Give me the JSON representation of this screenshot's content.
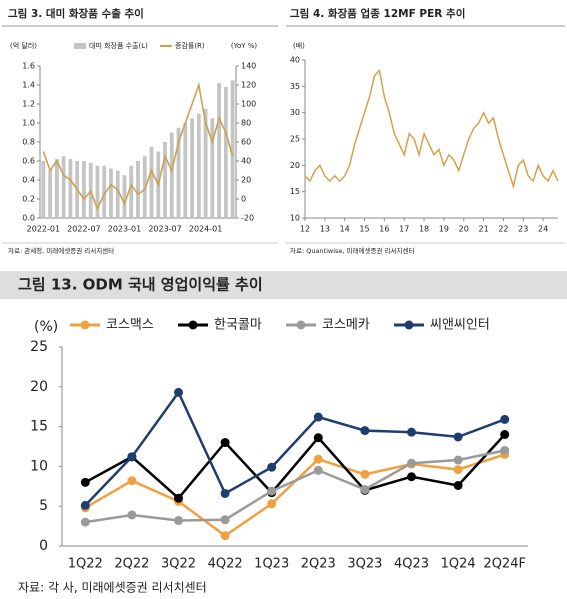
{
  "chart_data": [
    {
      "type": "combo",
      "title": "그림 3. 대미 화장품 수출 추이",
      "source": "자료: 관세청, 미래에셋증권 리서치센터",
      "y_label": "(억 달러)",
      "y2_label": "(YoY %)",
      "categories": [
        "2022-01",
        null,
        null,
        null,
        null,
        null,
        "2022-07",
        null,
        null,
        null,
        null,
        null,
        "2023-01",
        null,
        null,
        null,
        null,
        null,
        "2023-07",
        null,
        null,
        null,
        null,
        null,
        "2024-01",
        null,
        null,
        null,
        null
      ],
      "series": [
        {
          "name": "대미 화장품 수출(L)",
          "type": "bar",
          "color": "#c4c4c4",
          "values": [
            0.6,
            0.5,
            0.62,
            0.65,
            0.62,
            0.6,
            0.6,
            0.58,
            0.55,
            0.55,
            0.52,
            0.5,
            0.45,
            0.55,
            0.6,
            0.65,
            0.75,
            0.7,
            0.8,
            0.9,
            0.95,
            1.0,
            1.05,
            1.1,
            1.15,
            1.05,
            1.42,
            1.38,
            1.45
          ]
        },
        {
          "name": "증감률(R)",
          "type": "line",
          "axis": "y2",
          "color": "#c9a050",
          "values": [
            50,
            30,
            40,
            25,
            20,
            10,
            0,
            8,
            -10,
            5,
            15,
            10,
            -5,
            15,
            5,
            10,
            30,
            15,
            45,
            30,
            60,
            80,
            100,
            120,
            80,
            60,
            85,
            70,
            45
          ]
        }
      ],
      "ylim": [
        0,
        1.6
      ],
      "yticks": [
        {
          "value": 0,
          "label": "0.0"
        },
        0.2,
        0.4,
        0.6,
        0.8,
        {
          "value": 1,
          "label": "1.0"
        },
        1.2,
        1.4,
        1.6
      ],
      "y2lim": [
        -20,
        140
      ],
      "y2ticks": [
        -20,
        0,
        20,
        40,
        60,
        80,
        100,
        120,
        140
      ]
    },
    {
      "type": "line",
      "title": "그림 4. 화장품 업종 12MF PER 추이",
      "source": "자료: Quantiwise, 미래에셋증권 리서치센터",
      "y_label": "(배)",
      "color": "#d4a24c",
      "x": [
        2012,
        2012.25,
        2012.5,
        2012.75,
        2013,
        2013.25,
        2013.5,
        2013.75,
        2014,
        2014.25,
        2014.5,
        2014.75,
        2015,
        2015.25,
        2015.5,
        2015.75,
        2016,
        2016.25,
        2016.5,
        2016.75,
        2017,
        2017.25,
        2017.5,
        2017.75,
        2018,
        2018.25,
        2018.5,
        2018.75,
        2019,
        2019.25,
        2019.5,
        2019.75,
        2020,
        2020.25,
        2020.5,
        2020.75,
        2021,
        2021.25,
        2021.5,
        2021.75,
        2022,
        2022.25,
        2022.5,
        2022.75,
        2023,
        2023.25,
        2023.5,
        2023.75,
        2024,
        2024.25,
        2024.5,
        2024.75
      ],
      "values": [
        18,
        17,
        19,
        20,
        18,
        17,
        18,
        17,
        18,
        20,
        24,
        27,
        30,
        33,
        37,
        38,
        33,
        30,
        26,
        24,
        22,
        26,
        25,
        22,
        26,
        24,
        22,
        23,
        20,
        22,
        21,
        19,
        22,
        25,
        27,
        28,
        30,
        28,
        29,
        25,
        22,
        19,
        16,
        20,
        21,
        18,
        17,
        20,
        18,
        17,
        19,
        17
      ],
      "xlim": [
        2012,
        2024.75
      ],
      "xticks": [
        {
          "value": 2012,
          "label": "12"
        },
        {
          "value": 2013,
          "label": "13"
        },
        {
          "value": 2014,
          "label": "14"
        },
        {
          "value": 2015,
          "label": "15"
        },
        {
          "value": 2016,
          "label": "16"
        },
        {
          "value": 2017,
          "label": "17"
        },
        {
          "value": 2018,
          "label": "18"
        },
        {
          "value": 2019,
          "label": "19"
        },
        {
          "value": 2020,
          "label": "20"
        },
        {
          "value": 2021,
          "label": "21"
        },
        {
          "value": 2022,
          "label": "22"
        },
        {
          "value": 2023,
          "label": "23"
        },
        {
          "value": 2024,
          "label": "24"
        }
      ],
      "ylim": [
        10,
        40
      ],
      "yticks": [
        10,
        15,
        20,
        25,
        30,
        35,
        40
      ]
    },
    {
      "type": "line",
      "title": "그림 13. ODM 국내 영업이익률 추이",
      "source": "자료: 각 사, 미래에셋증권 리서치센터",
      "y_label": "(%)",
      "categories": [
        "1Q22",
        "2Q22",
        "3Q22",
        "4Q22",
        "1Q23",
        "2Q23",
        "3Q23",
        "4Q23",
        "1Q24",
        "2Q24F"
      ],
      "series": [
        {
          "name": "코스맥스",
          "color": "#f0a040",
          "values": [
            4.8,
            8.2,
            5.6,
            1.3,
            5.3,
            10.9,
            9.0,
            10.3,
            9.6,
            11.5
          ]
        },
        {
          "name": "한국콜마",
          "color": "#000000",
          "values": [
            8.0,
            11.2,
            6.0,
            13.0,
            6.7,
            13.6,
            7.0,
            8.7,
            7.6,
            14.0
          ]
        },
        {
          "name": "코스메카",
          "color": "#9a9a9a",
          "values": [
            3.0,
            3.9,
            3.2,
            3.3,
            6.9,
            9.5,
            7.1,
            10.4,
            10.8,
            12.0
          ]
        },
        {
          "name": "씨앤씨인터",
          "color": "#1f3d6e",
          "values": [
            5.1,
            11.2,
            19.3,
            6.6,
            9.9,
            16.2,
            14.5,
            14.3,
            13.7,
            15.9
          ]
        }
      ],
      "ylim": [
        0,
        25
      ],
      "yticks": [
        0,
        5,
        10,
        15,
        20,
        25
      ]
    }
  ]
}
